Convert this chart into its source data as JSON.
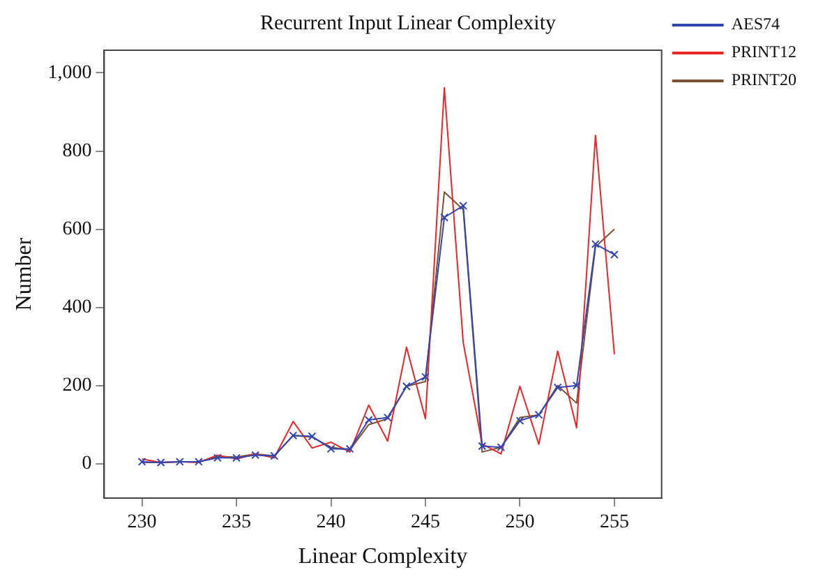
{
  "chart_data": {
    "type": "line",
    "title": "Recurrent Input Linear Complexity",
    "xlabel": "Linear Complexity",
    "ylabel": "Number",
    "x": [
      230,
      231,
      232,
      233,
      234,
      235,
      236,
      237,
      238,
      239,
      240,
      241,
      242,
      243,
      244,
      245,
      246,
      247,
      248,
      249,
      250,
      251,
      252,
      253,
      254,
      255
    ],
    "series": [
      {
        "name": "AES74",
        "color": "#3346b0",
        "marker": "cross",
        "values": [
          5,
          3,
          5,
          5,
          15,
          15,
          22,
          20,
          72,
          70,
          38,
          38,
          112,
          118,
          198,
          222,
          630,
          660,
          45,
          42,
          110,
          125,
          195,
          200,
          562,
          535
        ]
      },
      {
        "name": "PRINT12",
        "color": "#e8262a",
        "values": [
          12,
          3,
          5,
          3,
          22,
          12,
          25,
          15,
          108,
          40,
          55,
          30,
          150,
          58,
          298,
          115,
          962,
          310,
          50,
          25,
          198,
          50,
          288,
          92,
          840,
          280
        ]
      },
      {
        "name": "PRINT20",
        "color": "#7a5230",
        "values": [
          3,
          3,
          5,
          5,
          18,
          17,
          25,
          20,
          72,
          68,
          42,
          35,
          100,
          115,
          198,
          210,
          695,
          650,
          30,
          42,
          118,
          125,
          200,
          155,
          555,
          600
        ]
      }
    ],
    "xlim": [
      228,
      257.5
    ],
    "xticks": [
      230,
      235,
      240,
      245,
      250,
      255
    ],
    "ylim": [
      -88,
      1058
    ],
    "yticks": [
      0,
      200,
      400,
      600,
      800,
      {
        "value": 1000,
        "label": "1,000"
      }
    ],
    "grid": false,
    "legend": "top right",
    "line_style": "solid"
  }
}
